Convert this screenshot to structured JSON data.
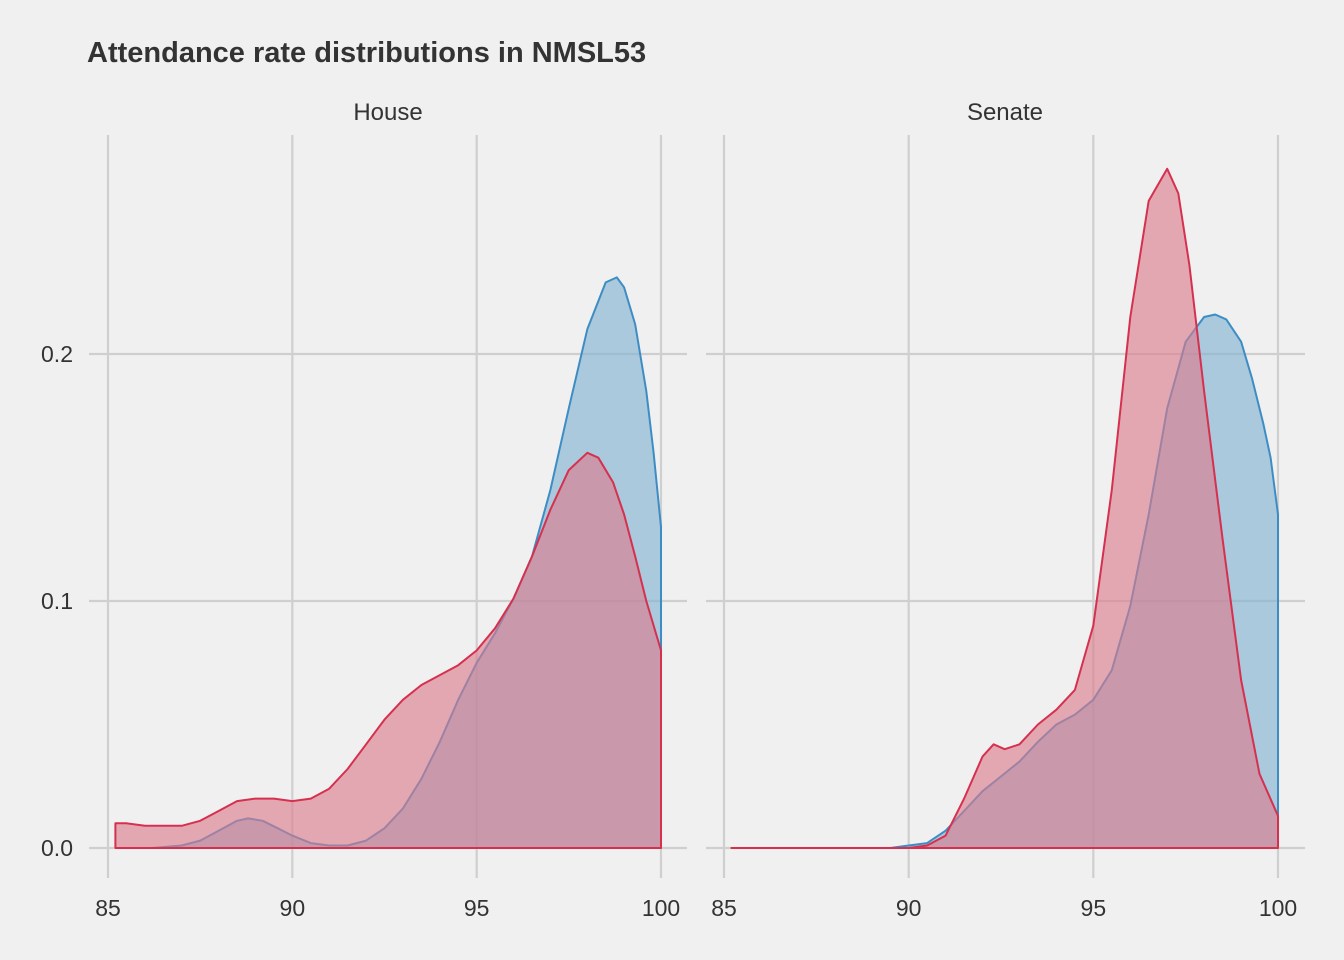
{
  "chart_data": {
    "type": "area",
    "title": "Attendance rate distributions in NMSL53",
    "xlabel": "",
    "ylabel": "",
    "xlim": [
      85,
      100
    ],
    "ylim": [
      0,
      0.27
    ],
    "x_ticks": [
      85,
      90,
      95,
      100
    ],
    "x_tick_labels": [
      "85",
      "90",
      "95",
      "100"
    ],
    "y_ticks": [
      0,
      0.1,
      0.2
    ],
    "y_tick_labels": [
      "0.0",
      "0.1",
      "0.2"
    ],
    "grid": true,
    "legend": "none",
    "colors": {
      "blue_fill": "#7fb1d0",
      "blue_line": "#3d8dc4",
      "red_fill": "#dc7a8c",
      "red_line": "#d6304f"
    },
    "panels": [
      {
        "label": "House",
        "series": [
          {
            "color": "blue",
            "x": [
              86.2,
              87.0,
              87.5,
              88.0,
              88.5,
              88.8,
              89.2,
              89.6,
              90.0,
              90.5,
              91.0,
              91.5,
              92.0,
              92.5,
              93.0,
              93.5,
              94.0,
              94.5,
              95.0,
              95.5,
              96.0,
              96.5,
              97.0,
              97.5,
              98.0,
              98.5,
              98.8,
              99.0,
              99.3,
              99.6,
              99.8,
              100.0
            ],
            "density": [
              0.0,
              0.001,
              0.003,
              0.007,
              0.011,
              0.012,
              0.011,
              0.008,
              0.005,
              0.002,
              0.001,
              0.001,
              0.003,
              0.008,
              0.016,
              0.028,
              0.043,
              0.06,
              0.075,
              0.087,
              0.101,
              0.118,
              0.145,
              0.178,
              0.21,
              0.229,
              0.231,
              0.227,
              0.212,
              0.185,
              0.16,
              0.13
            ]
          },
          {
            "color": "red",
            "x": [
              85.2,
              85.5,
              86.0,
              86.5,
              87.0,
              87.5,
              88.0,
              88.5,
              89.0,
              89.5,
              90.0,
              90.5,
              91.0,
              91.5,
              92.0,
              92.5,
              93.0,
              93.5,
              94.0,
              94.5,
              95.0,
              95.5,
              96.0,
              96.5,
              97.0,
              97.5,
              98.0,
              98.3,
              98.7,
              99.0,
              99.3,
              99.6,
              100.0
            ],
            "density": [
              0.01,
              0.01,
              0.009,
              0.009,
              0.009,
              0.011,
              0.015,
              0.019,
              0.02,
              0.02,
              0.019,
              0.02,
              0.024,
              0.032,
              0.042,
              0.052,
              0.06,
              0.066,
              0.07,
              0.074,
              0.08,
              0.089,
              0.101,
              0.118,
              0.137,
              0.153,
              0.16,
              0.158,
              0.148,
              0.135,
              0.118,
              0.1,
              0.08
            ]
          }
        ]
      },
      {
        "label": "Senate",
        "series": [
          {
            "color": "blue",
            "x": [
              85.2,
              89.5,
              90.0,
              90.5,
              91.0,
              91.5,
              92.0,
              92.5,
              93.0,
              93.5,
              94.0,
              94.5,
              95.0,
              95.5,
              96.0,
              96.5,
              97.0,
              97.5,
              98.0,
              98.3,
              98.6,
              99.0,
              99.3,
              99.6,
              99.8,
              100.0
            ],
            "density": [
              0.0,
              0.0,
              0.001,
              0.002,
              0.007,
              0.015,
              0.023,
              0.029,
              0.035,
              0.043,
              0.05,
              0.054,
              0.06,
              0.072,
              0.098,
              0.135,
              0.178,
              0.205,
              0.215,
              0.216,
              0.214,
              0.205,
              0.19,
              0.172,
              0.158,
              0.135
            ]
          },
          {
            "color": "red",
            "x": [
              85.2,
              89.5,
              90.0,
              90.5,
              91.0,
              91.5,
              92.0,
              92.3,
              92.6,
              93.0,
              93.5,
              94.0,
              94.5,
              95.0,
              95.5,
              96.0,
              96.5,
              97.0,
              97.3,
              97.6,
              98.0,
              98.5,
              99.0,
              99.5,
              100.0
            ],
            "density": [
              0.0,
              0.0,
              0.0,
              0.001,
              0.005,
              0.02,
              0.037,
              0.042,
              0.04,
              0.042,
              0.05,
              0.056,
              0.064,
              0.09,
              0.145,
              0.215,
              0.262,
              0.275,
              0.265,
              0.236,
              0.185,
              0.125,
              0.068,
              0.03,
              0.013
            ]
          }
        ]
      }
    ]
  }
}
